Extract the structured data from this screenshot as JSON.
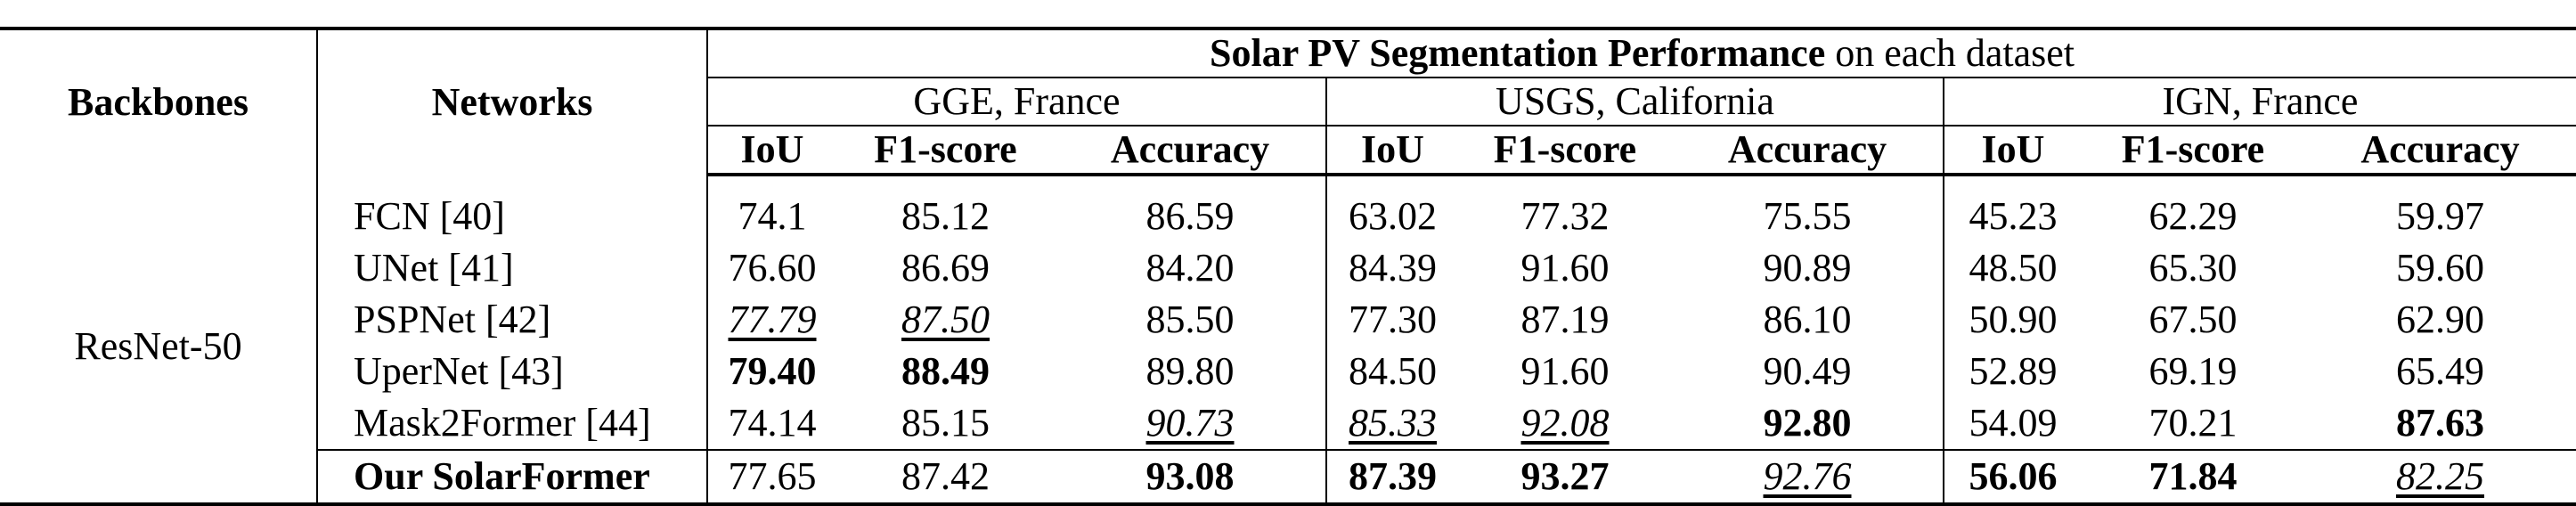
{
  "table": {
    "header": {
      "backbones": "Backbones",
      "networks": "Networks",
      "title_bold": "Solar PV Segmentation Performance",
      "title_rest": " on each dataset",
      "datasets": [
        "GGE, France",
        "USGS, California",
        "IGN, France"
      ],
      "metrics": [
        "IoU",
        "F1-score",
        "Accuracy"
      ]
    },
    "backbone": "ResNet-50",
    "rows": [
      {
        "network": "FCN [40]",
        "cells": [
          {
            "v": "74.1",
            "s": ""
          },
          {
            "v": "85.12",
            "s": ""
          },
          {
            "v": "86.59",
            "s": ""
          },
          {
            "v": "63.02",
            "s": ""
          },
          {
            "v": "77.32",
            "s": ""
          },
          {
            "v": "75.55",
            "s": ""
          },
          {
            "v": "45.23",
            "s": ""
          },
          {
            "v": "62.29",
            "s": ""
          },
          {
            "v": "59.97",
            "s": ""
          }
        ]
      },
      {
        "network": "UNet [41]",
        "cells": [
          {
            "v": "76.60",
            "s": ""
          },
          {
            "v": "86.69",
            "s": ""
          },
          {
            "v": "84.20",
            "s": ""
          },
          {
            "v": "84.39",
            "s": ""
          },
          {
            "v": "91.60",
            "s": ""
          },
          {
            "v": "90.89",
            "s": ""
          },
          {
            "v": "48.50",
            "s": ""
          },
          {
            "v": "65.30",
            "s": ""
          },
          {
            "v": "59.60",
            "s": ""
          }
        ]
      },
      {
        "network": "PSPNet [42]",
        "cells": [
          {
            "v": "77.79",
            "s": "u"
          },
          {
            "v": "87.50",
            "s": "u"
          },
          {
            "v": "85.50",
            "s": ""
          },
          {
            "v": "77.30",
            "s": ""
          },
          {
            "v": "87.19",
            "s": ""
          },
          {
            "v": "86.10",
            "s": ""
          },
          {
            "v": "50.90",
            "s": ""
          },
          {
            "v": "67.50",
            "s": ""
          },
          {
            "v": "62.90",
            "s": ""
          }
        ]
      },
      {
        "network": "UperNet [43]",
        "cells": [
          {
            "v": "79.40",
            "s": "b"
          },
          {
            "v": "88.49",
            "s": "b"
          },
          {
            "v": "89.80",
            "s": ""
          },
          {
            "v": "84.50",
            "s": ""
          },
          {
            "v": "91.60",
            "s": ""
          },
          {
            "v": "90.49",
            "s": ""
          },
          {
            "v": "52.89",
            "s": ""
          },
          {
            "v": "69.19",
            "s": ""
          },
          {
            "v": "65.49",
            "s": ""
          }
        ]
      },
      {
        "network": "Mask2Former [44]",
        "cells": [
          {
            "v": "74.14",
            "s": ""
          },
          {
            "v": "85.15",
            "s": ""
          },
          {
            "v": "90.73",
            "s": "u"
          },
          {
            "v": "85.33",
            "s": "u"
          },
          {
            "v": "92.08",
            "s": "u"
          },
          {
            "v": "92.80",
            "s": "b"
          },
          {
            "v": "54.09",
            "s": ""
          },
          {
            "v": "70.21",
            "s": ""
          },
          {
            "v": "87.63",
            "s": "b"
          }
        ]
      },
      {
        "network": "Our SolarFormer",
        "network_bold": true,
        "cells": [
          {
            "v": "77.65",
            "s": ""
          },
          {
            "v": "87.42",
            "s": ""
          },
          {
            "v": "93.08",
            "s": "b"
          },
          {
            "v": "87.39",
            "s": "b"
          },
          {
            "v": "93.27",
            "s": "b"
          },
          {
            "v": "92.76",
            "s": "u"
          },
          {
            "v": "56.06",
            "s": "b"
          },
          {
            "v": "71.84",
            "s": "b"
          },
          {
            "v": "82.25",
            "s": "u"
          }
        ]
      }
    ]
  }
}
